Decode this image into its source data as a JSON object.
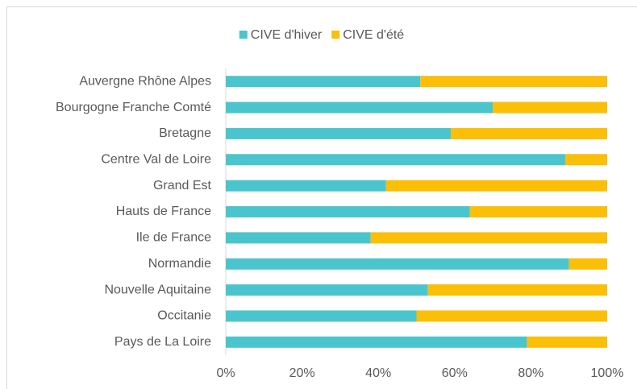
{
  "chart_data": {
    "type": "stacked_bar_horizontal",
    "categories": [
      "Auvergne Rhône Alpes",
      "Bourgogne Franche Comté",
      "Bretagne",
      "Centre Val de Loire",
      "Grand Est",
      "Hauts de France",
      "Ile de France",
      "Normandie",
      "Nouvelle Aquitaine",
      "Occitanie",
      "Pays de La Loire"
    ],
    "series": [
      {
        "name": "CIVE d'hiver",
        "color": "#4bc5cd",
        "values": [
          51,
          70,
          59,
          89,
          42,
          64,
          38,
          90,
          53,
          50,
          79
        ]
      },
      {
        "name": "CIVE d'été",
        "color": "#fbbf07",
        "values": [
          49,
          30,
          41,
          11,
          58,
          36,
          62,
          10,
          47,
          50,
          21
        ]
      }
    ],
    "xlim": [
      0,
      100
    ],
    "xticks": [
      {
        "value": 0,
        "label": "0%"
      },
      {
        "value": 20,
        "label": "20%"
      },
      {
        "value": 40,
        "label": "40%"
      },
      {
        "value": 60,
        "label": "60%"
      },
      {
        "value": 80,
        "label": "80%"
      },
      {
        "value": 100,
        "label": "100%"
      }
    ],
    "legend": "top"
  }
}
